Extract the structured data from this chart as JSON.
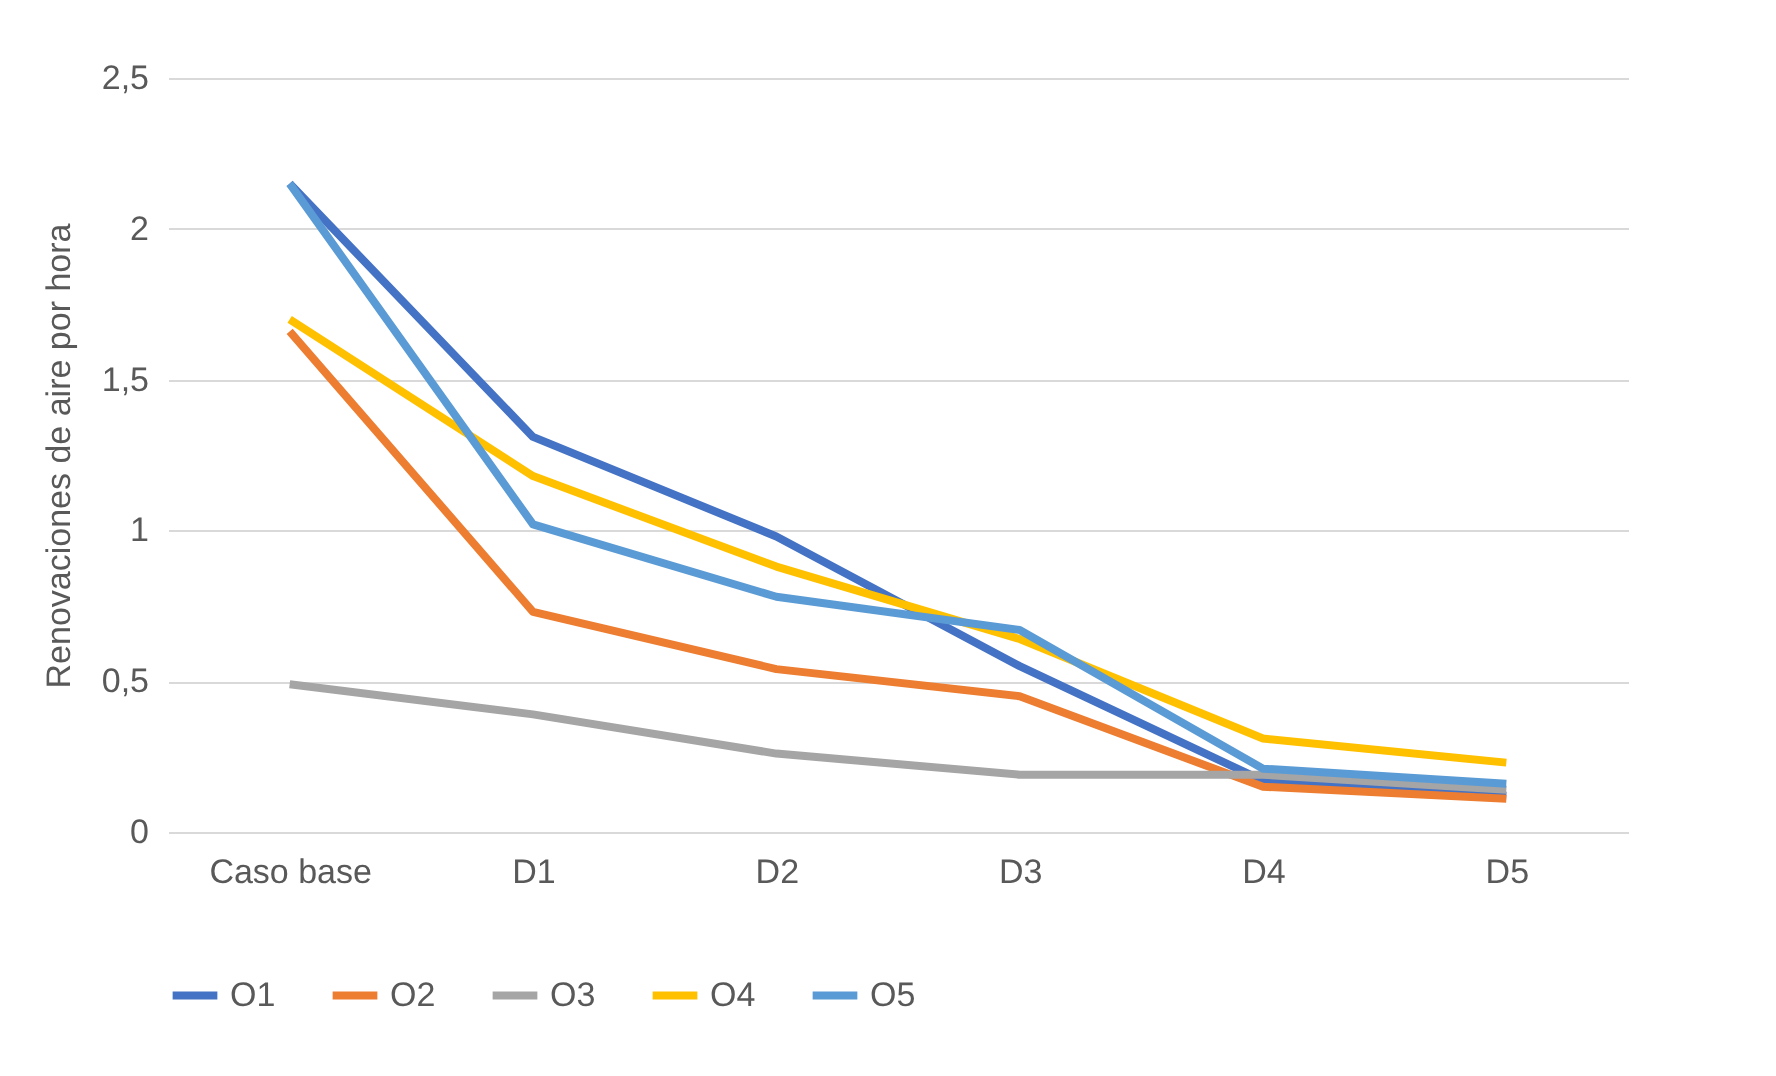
{
  "chart_data": {
    "type": "line",
    "ylabel": "Renovaciones de aire por hora",
    "categories": [
      "Caso base",
      "D1",
      "D2",
      "D3",
      "D4",
      "D5"
    ],
    "series": [
      {
        "name": "O1",
        "color": "#4472c4",
        "values": [
          2.15,
          1.31,
          0.98,
          0.55,
          0.17,
          0.12
        ]
      },
      {
        "name": "O2",
        "color": "#ed7d31",
        "values": [
          1.66,
          0.73,
          0.54,
          0.45,
          0.15,
          0.11
        ]
      },
      {
        "name": "O3",
        "color": "#a5a5a5",
        "values": [
          0.49,
          0.39,
          0.26,
          0.19,
          0.19,
          0.14
        ]
      },
      {
        "name": "O4",
        "color": "#ffc000",
        "values": [
          1.7,
          1.18,
          0.88,
          0.64,
          0.31,
          0.23
        ]
      },
      {
        "name": "O5",
        "color": "#5b9bd5",
        "values": [
          2.15,
          1.02,
          0.78,
          0.67,
          0.21,
          0.16
        ]
      }
    ],
    "ylim": [
      0,
      2.5
    ],
    "yticks": [
      0,
      {
        "value": 0.5,
        "label": "0,5"
      },
      1,
      {
        "value": 1.5,
        "label": "1,5"
      },
      2,
      {
        "value": 2.5,
        "label": "2,5"
      }
    ],
    "grid": "y",
    "legend": "bottom",
    "marker": "none",
    "line_style": "solid"
  }
}
